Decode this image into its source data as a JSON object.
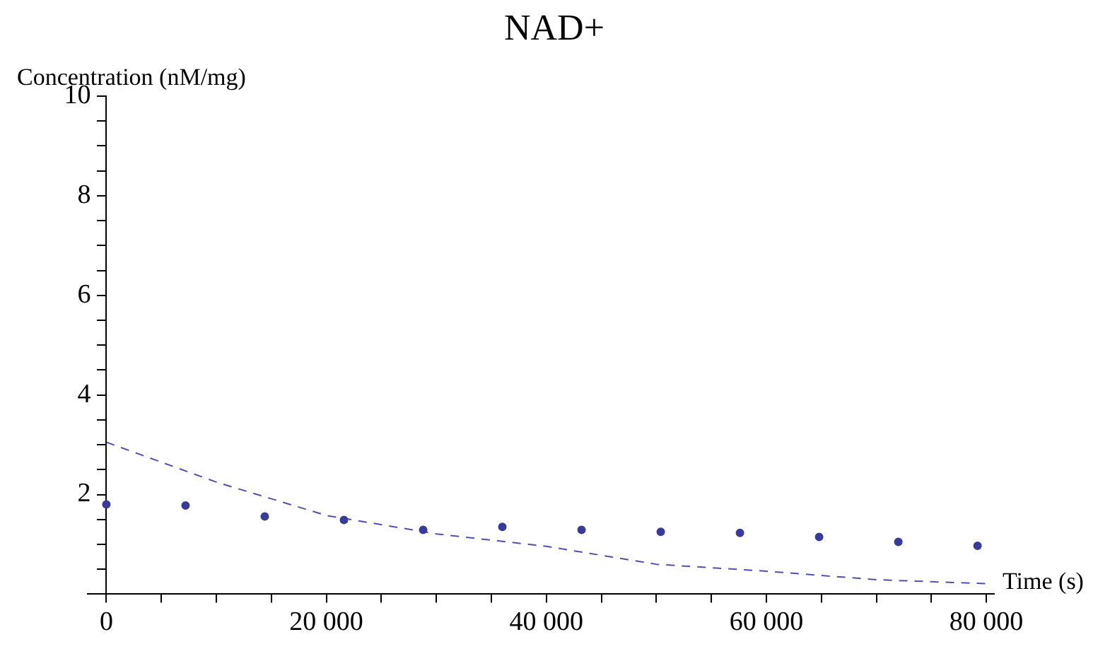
{
  "chart_data": {
    "type": "scatter",
    "title": "NAD+",
    "xlabel": "Time (s)",
    "ylabel": "Concentration (nM/mg)",
    "x": [
      0,
      7200,
      14400,
      21600,
      28800,
      36000,
      43200,
      50400,
      57600,
      64800,
      72000,
      79200
    ],
    "series": [
      {
        "color": "#3a3a9a",
        "values": [
          1.8,
          1.78,
          1.56,
          1.49,
          1.29,
          1.35,
          1.29,
          1.25,
          1.23,
          1.15,
          1.05,
          0.97
        ],
        "marker": "circle"
      },
      {
        "type": "line",
        "color": "#5050b0",
        "line_style": "dashed",
        "marker": "none",
        "x": [
          0,
          10000,
          20000,
          30000,
          40000,
          50000,
          60000,
          70000,
          80000
        ],
        "values": [
          3.05,
          2.25,
          1.58,
          1.21,
          0.96,
          0.6,
          0.46,
          0.29,
          0.21
        ]
      }
    ],
    "xlim": [
      -1700,
      80700
    ],
    "ylim": [
      0,
      10
    ],
    "xticks": [
      0,
      {
        "value": 5000,
        "label": null
      },
      {
        "value": 10000,
        "label": null
      },
      {
        "value": 15000,
        "label": null
      },
      {
        "value": 20000,
        "label": "20 000"
      },
      {
        "value": 25000,
        "label": null
      },
      {
        "value": 30000,
        "label": null
      },
      {
        "value": 35000,
        "label": null
      },
      {
        "value": 40000,
        "label": "40 000"
      },
      {
        "value": 45000,
        "label": null
      },
      {
        "value": 50000,
        "label": null
      },
      {
        "value": 55000,
        "label": null
      },
      {
        "value": 60000,
        "label": "60 000"
      },
      {
        "value": 65000,
        "label": null
      },
      {
        "value": 70000,
        "label": null
      },
      {
        "value": 75000,
        "label": null
      },
      {
        "value": 80000,
        "label": "80 000"
      }
    ],
    "yticks": [
      {
        "value": 0.5,
        "label": null
      },
      {
        "value": 1,
        "label": null
      },
      {
        "value": 1.5,
        "label": null
      },
      2,
      {
        "value": 2.5,
        "label": null
      },
      {
        "value": 3,
        "label": null
      },
      {
        "value": 3.5,
        "label": null
      },
      4,
      {
        "value": 4.5,
        "label": null
      },
      {
        "value": 5,
        "label": null
      },
      {
        "value": 5.5,
        "label": null
      },
      6,
      {
        "value": 6.5,
        "label": null
      },
      {
        "value": 7,
        "label": null
      },
      {
        "value": 7.5,
        "label": null
      },
      8,
      {
        "value": 8.5,
        "label": null
      },
      {
        "value": 9,
        "label": null
      },
      {
        "value": 9.5,
        "label": null
      },
      10
    ],
    "grid": false,
    "legend": false
  }
}
